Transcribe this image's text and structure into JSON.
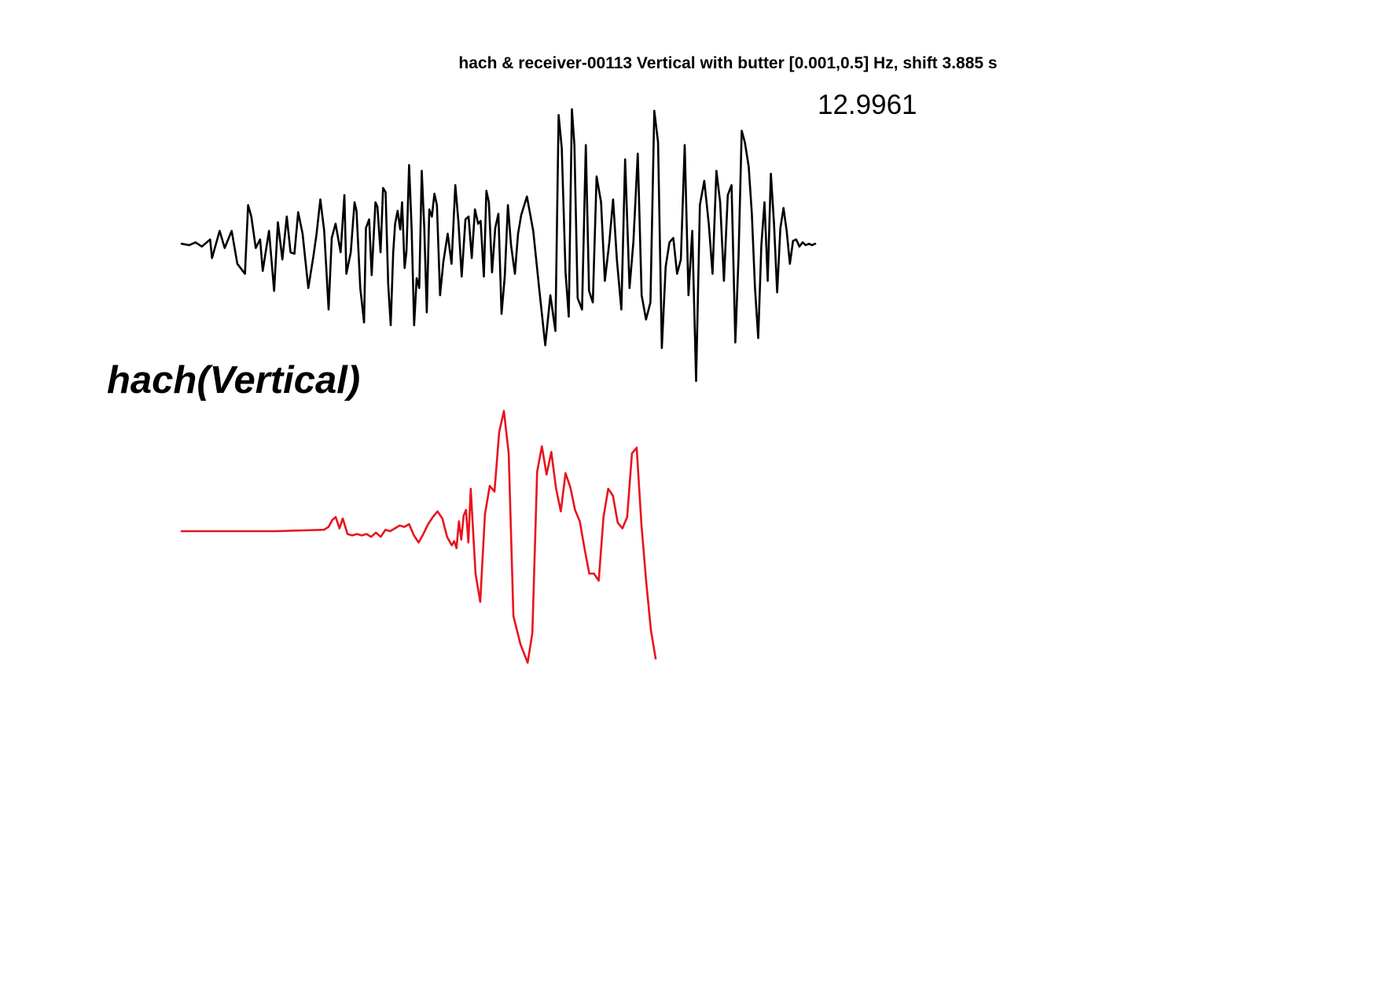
{
  "chart_data": {
    "type": "line",
    "title": "hach & receiver-00113 Vertical with butter [0.001,0.5] Hz, shift 3.885 s",
    "annotation": "12.9961",
    "trace_label": "hach(Vertical)",
    "xlabel": "",
    "ylabel": "",
    "axes_visible": false,
    "grid": false,
    "legend": "none",
    "series": [
      {
        "color": "#000000",
        "x": [
          0,
          0.012,
          0.022,
          0.032,
          0.045,
          0.048,
          0.06,
          0.068,
          0.079,
          0.088,
          0.1,
          0.105,
          0.11,
          0.117,
          0.124,
          0.128,
          0.138,
          0.146,
          0.152,
          0.159,
          0.166,
          0.172,
          0.178,
          0.184,
          0.191,
          0.2,
          0.208,
          0.213,
          0.219,
          0.225,
          0.232,
          0.237,
          0.243,
          0.251,
          0.257,
          0.26,
          0.267,
          0.273,
          0.276,
          0.282,
          0.288,
          0.291,
          0.296,
          0.3,
          0.306,
          0.309,
          0.314,
          0.318,
          0.322,
          0.326,
          0.33,
          0.334,
          0.337,
          0.341,
          0.345,
          0.348,
          0.352,
          0.355,
          0.359,
          0.363,
          0.367,
          0.371,
          0.375,
          0.379,
          0.383,
          0.387,
          0.391,
          0.395,
          0.399,
          0.403,
          0.408,
          0.413,
          0.42,
          0.426,
          0.432,
          0.437,
          0.442,
          0.448,
          0.453,
          0.458,
          0.463,
          0.468,
          0.472,
          0.477,
          0.481,
          0.485,
          0.49,
          0.495,
          0.5,
          0.505,
          0.51,
          0.515,
          0.52,
          0.526,
          0.531,
          0.536,
          0.545,
          0.555,
          0.565,
          0.574,
          0.582,
          0.59,
          0.595,
          0.6,
          0.606,
          0.611,
          0.616,
          0.62,
          0.625,
          0.632,
          0.638,
          0.643,
          0.649,
          0.655,
          0.662,
          0.668,
          0.675,
          0.681,
          0.687,
          0.694,
          0.7,
          0.707,
          0.713,
          0.72,
          0.726,
          0.733,
          0.74,
          0.746,
          0.752,
          0.758,
          0.764,
          0.77,
          0.776,
          0.782,
          0.788,
          0.794,
          0.8,
          0.806,
          0.812,
          0.818,
          0.825,
          0.832,
          0.838,
          0.844,
          0.85,
          0.856,
          0.862,
          0.868,
          0.874,
          0.879,
          0.884,
          0.889,
          0.895,
          0.9,
          0.905,
          0.91,
          0.915,
          0.92,
          0.925,
          0.93,
          0.935,
          0.94,
          0.945,
          0.95,
          0.955,
          0.96,
          0.965,
          0.97,
          0.975,
          0.98,
          0.985,
          0.99,
          0.995,
          1.0
        ],
        "y": [
          0.01,
          0.0,
          0.02,
          -0.01,
          0.04,
          -0.09,
          0.1,
          -0.02,
          0.1,
          -0.13,
          -0.2,
          0.28,
          0.2,
          -0.02,
          0.04,
          -0.18,
          0.1,
          -0.32,
          0.16,
          -0.1,
          0.2,
          -0.05,
          -0.06,
          0.23,
          0.08,
          -0.3,
          -0.08,
          0.08,
          0.32,
          0.1,
          -0.45,
          0.05,
          0.15,
          -0.05,
          0.35,
          -0.2,
          -0.05,
          0.3,
          0.24,
          -0.3,
          -0.54,
          0.12,
          0.18,
          -0.21,
          0.3,
          0.27,
          -0.05,
          0.4,
          0.37,
          -0.27,
          -0.56,
          -0.05,
          0.15,
          0.24,
          0.11,
          0.3,
          -0.16,
          -0.04,
          0.56,
          0.12,
          -0.56,
          -0.23,
          -0.3,
          0.52,
          0.12,
          -0.47,
          0.25,
          0.2,
          0.36,
          0.28,
          -0.35,
          -0.12,
          0.08,
          -0.13,
          0.42,
          0.16,
          -0.22,
          0.18,
          0.2,
          -0.09,
          0.25,
          0.15,
          0.17,
          -0.22,
          0.38,
          0.3,
          -0.19,
          0.12,
          0.22,
          -0.48,
          -0.22,
          0.28,
          0.0,
          -0.2,
          0.08,
          0.21,
          0.34,
          0.1,
          -0.33,
          -0.7,
          -0.35,
          -0.6,
          0.91,
          0.68,
          -0.19,
          -0.5,
          0.95,
          0.7,
          -0.37,
          -0.45,
          0.7,
          -0.32,
          -0.4,
          0.48,
          0.3,
          -0.25,
          0.02,
          0.32,
          -0.1,
          -0.45,
          0.6,
          -0.3,
          0.02,
          0.64,
          -0.35,
          -0.52,
          -0.4,
          0.94,
          0.72,
          -0.72,
          -0.15,
          0.02,
          0.05,
          -0.2,
          -0.1,
          0.7,
          -0.35,
          0.1,
          -0.95,
          0.28,
          0.45,
          0.15,
          -0.2,
          0.52,
          0.3,
          -0.25,
          0.35,
          0.42,
          -0.68,
          -0.08,
          0.8,
          0.72,
          0.55,
          0.22,
          -0.3,
          -0.65,
          0.0,
          0.3,
          -0.25,
          0.5,
          0.15,
          -0.33,
          0.12,
          0.26,
          0.1,
          -0.13,
          0.03,
          0.04,
          -0.01,
          0.02,
          0.0,
          0.01,
          0.0,
          0.01
        ]
      },
      {
        "color": "#e8141e",
        "x": [
          0,
          0.1,
          0.2,
          0.3,
          0.31,
          0.318,
          0.325,
          0.333,
          0.34,
          0.35,
          0.36,
          0.37,
          0.38,
          0.39,
          0.4,
          0.41,
          0.42,
          0.43,
          0.44,
          0.45,
          0.46,
          0.47,
          0.48,
          0.49,
          0.5,
          0.51,
          0.52,
          0.53,
          0.54,
          0.55,
          0.56,
          0.57,
          0.575,
          0.58,
          0.585,
          0.59,
          0.595,
          0.6,
          0.605,
          0.61,
          0.62,
          0.63,
          0.64,
          0.65,
          0.66,
          0.67,
          0.68,
          0.69,
          0.7,
          0.715,
          0.73,
          0.74,
          0.75,
          0.76,
          0.77,
          0.78,
          0.79,
          0.8,
          0.81,
          0.82,
          0.83,
          0.84,
          0.85,
          0.86,
          0.87,
          0.88,
          0.89,
          0.9,
          0.91,
          0.92,
          0.93,
          0.94,
          0.95,
          0.96,
          0.97,
          0.98,
          0.99,
          1.0
        ],
        "y": [
          0.0,
          0.0,
          0.0,
          0.01,
          0.03,
          0.08,
          0.1,
          0.02,
          0.09,
          -0.02,
          -0.03,
          -0.02,
          -0.03,
          -0.02,
          -0.04,
          -0.01,
          -0.04,
          0.01,
          0.0,
          0.02,
          0.04,
          0.03,
          0.05,
          -0.03,
          -0.08,
          -0.02,
          0.05,
          0.1,
          0.14,
          0.09,
          -0.04,
          -0.1,
          -0.07,
          -0.12,
          0.07,
          -0.06,
          0.11,
          0.15,
          -0.08,
          0.3,
          -0.3,
          -0.5,
          0.12,
          0.32,
          0.28,
          0.7,
          0.85,
          0.55,
          -0.6,
          -0.8,
          -0.93,
          -0.72,
          0.42,
          0.6,
          0.4,
          0.56,
          0.3,
          0.14,
          0.41,
          0.31,
          0.15,
          0.07,
          -0.12,
          -0.3,
          -0.3,
          -0.35,
          0.1,
          0.3,
          0.25,
          0.06,
          0.02,
          0.1,
          0.55,
          0.59,
          0.05,
          -0.35,
          -0.7,
          -0.9
        ]
      }
    ]
  }
}
